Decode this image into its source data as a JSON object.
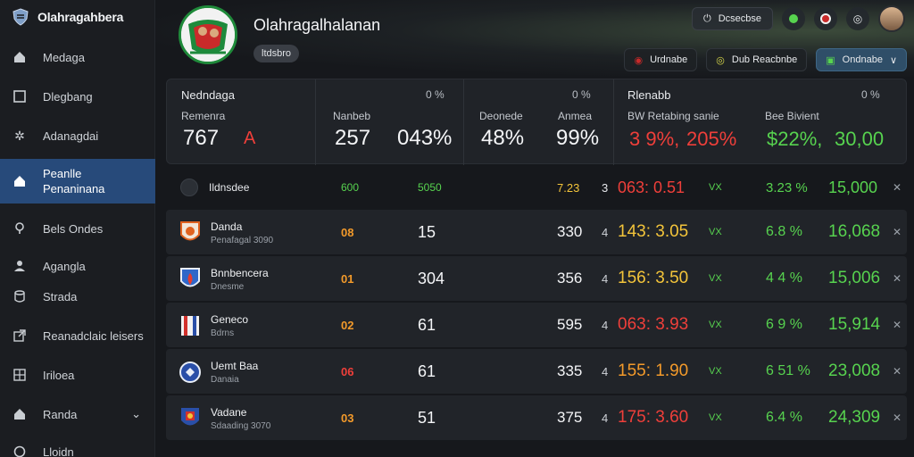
{
  "brand": {
    "name": "Olahragahbera",
    "logo_icon": "shield-logo-icon"
  },
  "sidebar": {
    "items": [
      {
        "label": "Medaga",
        "icon": "home-icon"
      },
      {
        "label": "Dlegbang",
        "icon": "square-icon"
      },
      {
        "label": "Adanagdai",
        "icon": "gear-icon"
      },
      {
        "label": "Peanlle",
        "label2": "Penaninana",
        "icon": "home-icon",
        "active": true
      },
      {
        "label": "Bels Ondes",
        "icon": "pin-icon"
      },
      {
        "label": "Agangla",
        "icon": "user-icon"
      },
      {
        "label": "Strada",
        "icon": "cylinder-icon"
      },
      {
        "label": "Reanadclaic leisers",
        "icon": "export-icon"
      },
      {
        "label": "Iriloea",
        "icon": "grid-icon"
      },
      {
        "label": "Randa",
        "icon": "home-icon",
        "has_chevron": true
      },
      {
        "label": "Lloidn",
        "icon": "circle-icon"
      }
    ]
  },
  "header": {
    "title": "Olahragalhalanan",
    "pill": "ltdsbro",
    "top_button": "Dcsecbse",
    "sub_buttons": [
      "Urdnabe",
      "Dub Reacbnbe",
      "Ondnabe"
    ]
  },
  "summary": {
    "s1": {
      "title": "Nedndaga",
      "sub": "Remenra",
      "value": "767",
      "mark": "A"
    },
    "s2": {
      "sub": "Nanbeb",
      "pct": "0 %",
      "v1": "257",
      "v2": "043%"
    },
    "s3": {
      "sub1": "Deonede",
      "sub2": "Anmea",
      "pct": "0 %",
      "v1": "48%",
      "v2": "99%"
    },
    "s4": {
      "title": "Rlenabb",
      "sub1": "BW Retabing sanie",
      "sub2": "Bee Bivient",
      "pct": "0 %",
      "v1": "3 9%,",
      "v2": "205%",
      "v3": "$22%,",
      "v4": "30,00"
    }
  },
  "table_header": {
    "team": "Ildnsdee",
    "c1": "600",
    "c2": "5050",
    "c3": "7.23",
    "c3b": "3",
    "c4": "063: 0.51",
    "c5": "VX",
    "c6": "3.23 %",
    "c7": "15,000"
  },
  "rows": [
    {
      "name": "Danda",
      "sub": "Penafagal 3090",
      "rank": "08",
      "rank_color": "#f39a2a",
      "pts": "15",
      "val": "330",
      "mark": "4",
      "odd": "143: 3.05",
      "odd_color": "#f3c43a",
      "vx": "VX",
      "chg": "6.8 %",
      "amt": "16,068",
      "logo": "fire-shield-icon"
    },
    {
      "name": "Bnnbencera",
      "sub": "Dnesme",
      "rank": "01",
      "rank_color": "#f39a2a",
      "pts": "304",
      "val": "356",
      "mark": "4",
      "odd": "156: 3.50",
      "odd_color": "#f3c43a",
      "vx": "VX",
      "chg": "4 4 %",
      "amt": "15,006",
      "logo": "flame-shield-icon"
    },
    {
      "name": "Geneco",
      "sub": "Bdrns",
      "rank": "02",
      "rank_color": "#f39a2a",
      "pts": "61",
      "val": "595",
      "mark": "4",
      "odd": "063: 3.93",
      "odd_color": "#ef3f3a",
      "vx": "VX",
      "chg": "6 9 %",
      "amt": "15,914",
      "logo": "striped-shield-icon"
    },
    {
      "name": "Uemt Baa",
      "sub": "Danaia",
      "rank": "06",
      "rank_color": "#ef3f3a",
      "pts": "61",
      "val": "335",
      "mark": "4",
      "odd": "155: 1.90",
      "odd_color": "#f39a2a",
      "vx": "VX",
      "chg": "6 51 %",
      "amt": "23,008",
      "logo": "round-crest-icon"
    },
    {
      "name": "Vadane",
      "sub": "Sdaading 3070",
      "rank": "03",
      "rank_color": "#f39a2a",
      "pts": "51",
      "val": "375",
      "mark": "4",
      "odd": "175: 3.60",
      "odd_color": "#ef3f3a",
      "vx": "VX",
      "chg": "6.4 %",
      "amt": "24,309",
      "logo": "colored-shield-icon"
    }
  ],
  "colors": {
    "accent": "#274a7a",
    "positive": "#57d34f",
    "negative": "#ef3f3a",
    "warning": "#f3c43a"
  }
}
